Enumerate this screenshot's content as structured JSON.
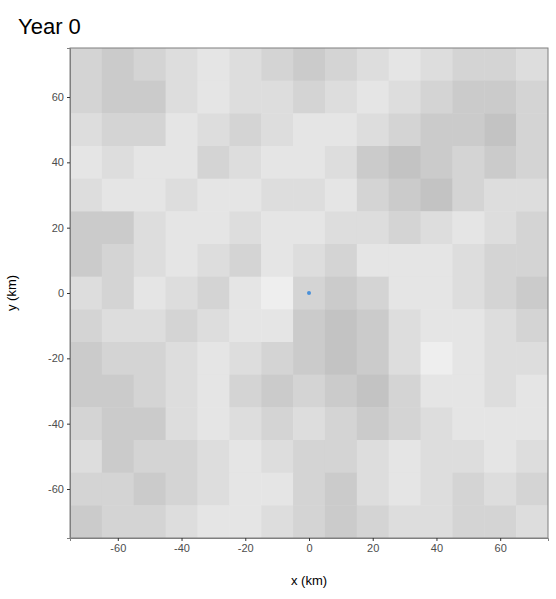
{
  "chart_data": {
    "type": "scatter",
    "title": "Year 0",
    "x_label": "x (km)",
    "y_label": "y (km)",
    "xlim": [
      -75,
      75
    ],
    "ylim": [
      -75,
      75
    ],
    "xticks": [
      -60,
      -40,
      -20,
      0,
      20,
      40,
      60
    ],
    "yticks": [
      -60,
      -40,
      -20,
      0,
      20,
      40,
      60
    ],
    "x": [
      0
    ],
    "values": [
      0
    ],
    "color": "#4a90d9",
    "grid": false,
    "habitat": {
      "x_edges": [
        -75,
        -65,
        -55,
        -45,
        -35,
        -25,
        -15,
        -5,
        5,
        15,
        25,
        35,
        45,
        55,
        65,
        75
      ],
      "y_edges": [
        75,
        65,
        55,
        45,
        35,
        25,
        15,
        5,
        -5,
        -15,
        -25,
        -35,
        -45,
        -55,
        -65,
        -75
      ],
      "cells": [
        [
          0.5,
          0.6,
          0.5,
          0.4,
          0.3,
          0.4,
          0.5,
          0.6,
          0.5,
          0.4,
          0.3,
          0.4,
          0.5,
          0.5,
          0.4
        ],
        [
          0.5,
          0.6,
          0.6,
          0.4,
          0.3,
          0.4,
          0.4,
          0.5,
          0.4,
          0.3,
          0.4,
          0.5,
          0.6,
          0.6,
          0.5
        ],
        [
          0.4,
          0.5,
          0.5,
          0.3,
          0.4,
          0.5,
          0.4,
          0.3,
          0.3,
          0.4,
          0.5,
          0.6,
          0.6,
          0.7,
          0.5
        ],
        [
          0.3,
          0.4,
          0.3,
          0.3,
          0.5,
          0.4,
          0.3,
          0.3,
          0.4,
          0.6,
          0.7,
          0.6,
          0.5,
          0.6,
          0.5
        ],
        [
          0.4,
          0.3,
          0.3,
          0.4,
          0.3,
          0.3,
          0.4,
          0.4,
          0.3,
          0.5,
          0.6,
          0.7,
          0.5,
          0.4,
          0.4
        ],
        [
          0.6,
          0.6,
          0.4,
          0.3,
          0.3,
          0.4,
          0.3,
          0.3,
          0.4,
          0.4,
          0.5,
          0.4,
          0.3,
          0.4,
          0.5
        ],
        [
          0.6,
          0.5,
          0.4,
          0.3,
          0.4,
          0.5,
          0.3,
          0.4,
          0.5,
          0.3,
          0.3,
          0.3,
          0.4,
          0.5,
          0.5
        ],
        [
          0.4,
          0.5,
          0.3,
          0.4,
          0.5,
          0.3,
          0.2,
          0.5,
          0.6,
          0.5,
          0.3,
          0.3,
          0.4,
          0.5,
          0.6
        ],
        [
          0.5,
          0.4,
          0.4,
          0.5,
          0.4,
          0.3,
          0.3,
          0.6,
          0.7,
          0.6,
          0.4,
          0.3,
          0.3,
          0.4,
          0.5
        ],
        [
          0.6,
          0.5,
          0.5,
          0.4,
          0.3,
          0.4,
          0.5,
          0.6,
          0.7,
          0.6,
          0.4,
          0.2,
          0.3,
          0.4,
          0.4
        ],
        [
          0.6,
          0.6,
          0.5,
          0.4,
          0.3,
          0.5,
          0.6,
          0.5,
          0.6,
          0.7,
          0.5,
          0.3,
          0.3,
          0.4,
          0.3
        ],
        [
          0.5,
          0.6,
          0.6,
          0.4,
          0.3,
          0.4,
          0.5,
          0.4,
          0.5,
          0.6,
          0.5,
          0.4,
          0.3,
          0.3,
          0.3
        ],
        [
          0.4,
          0.6,
          0.5,
          0.5,
          0.4,
          0.3,
          0.4,
          0.5,
          0.5,
          0.4,
          0.3,
          0.4,
          0.4,
          0.3,
          0.4
        ],
        [
          0.5,
          0.5,
          0.6,
          0.5,
          0.4,
          0.3,
          0.3,
          0.5,
          0.6,
          0.4,
          0.3,
          0.4,
          0.5,
          0.4,
          0.5
        ],
        [
          0.6,
          0.5,
          0.5,
          0.4,
          0.3,
          0.3,
          0.4,
          0.5,
          0.6,
          0.5,
          0.4,
          0.4,
          0.5,
          0.5,
          0.4
        ]
      ]
    }
  }
}
